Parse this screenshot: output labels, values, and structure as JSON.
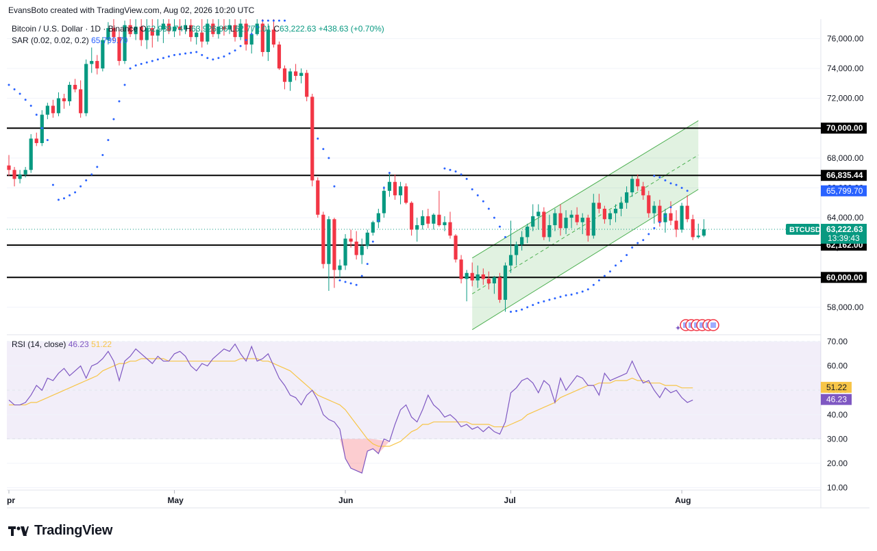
{
  "snapshot": "EvansBoto created with TradingView.com, Aug 02, 2026 10:20 UTC",
  "legend": {
    "symbol": "Bitcoin / U.S. Dollar · 1D · Binance",
    "o_label": "O",
    "o": "62,939.74",
    "h_label": "H",
    "h": "63,926.86",
    "l_label": "L",
    "l": "62,772.01",
    "c_label": "C",
    "c": "63,222.63",
    "change": "+438.63 (+0.70%)",
    "sar_label": "SAR (0.02, 0.02, 0.2)",
    "sar": "65,799.70",
    "rsi_label": "RSI (14, close)",
    "rsi": "46.23",
    "rsi_ma": "51.22"
  },
  "brand": {
    "name": "TradingView"
  },
  "colors": {
    "up": "#089981",
    "down": "#f23645",
    "sar": "#2962ff",
    "rsi": "#7e57c2",
    "rsi_ma": "#f7c548",
    "channel": "#4caf50"
  },
  "chart_data": [
    {
      "type": "candlestick",
      "symbol": "BTCUSD",
      "x_labels": [
        "Apr",
        "May",
        "Jun",
        "Jul",
        "Aug"
      ],
      "y_ticks": [
        58000,
        60000,
        62000,
        64000,
        66000,
        68000,
        70000,
        72000,
        74000,
        76000
      ],
      "y_range": [
        56300,
        77300
      ],
      "ohlc": [
        [
          67500,
          68200,
          66800,
          67200
        ],
        [
          67200,
          67400,
          66100,
          66600
        ],
        [
          66600,
          67200,
          66300,
          66900
        ],
        [
          66900,
          67400,
          66700,
          67200
        ],
        [
          67200,
          69600,
          67000,
          69300
        ],
        [
          69300,
          69700,
          68800,
          69000
        ],
        [
          69000,
          71200,
          68800,
          70900
        ],
        [
          70900,
          71700,
          70600,
          71500
        ],
        [
          71500,
          71900,
          70700,
          71000
        ],
        [
          71000,
          72400,
          70800,
          72000
        ],
        [
          72000,
          72300,
          71300,
          71800
        ],
        [
          71800,
          73100,
          71500,
          72900
        ],
        [
          72900,
          73300,
          72400,
          72600
        ],
        [
          72600,
          73200,
          70700,
          71000
        ],
        [
          71000,
          74600,
          70800,
          74300
        ],
        [
          74300,
          75400,
          73700,
          74500
        ],
        [
          74500,
          74900,
          73600,
          74000
        ],
        [
          74000,
          76100,
          73800,
          75900
        ],
        [
          75900,
          77100,
          75600,
          76700
        ],
        [
          76700,
          77300,
          75800,
          76100
        ],
        [
          76100,
          76600,
          74200,
          74500
        ],
        [
          74500,
          77200,
          74300,
          76900
        ],
        [
          76900,
          77300,
          76100,
          76300
        ],
        [
          76300,
          77300,
          75900,
          76800
        ],
        [
          76800,
          77300,
          75500,
          75900
        ],
        [
          75900,
          77300,
          75300,
          76700
        ],
        [
          76700,
          77300,
          75400,
          76200
        ],
        [
          76200,
          77300,
          75800,
          76600
        ],
        [
          76600,
          77300,
          75700,
          77000
        ],
        [
          77000,
          77300,
          76300,
          76500
        ],
        [
          76500,
          77300,
          76100,
          76800
        ],
        [
          76800,
          77300,
          76200,
          76600
        ],
        [
          76600,
          77300,
          76300,
          76900
        ],
        [
          76900,
          77300,
          75800,
          76100
        ],
        [
          76100,
          76800,
          75600,
          76400
        ],
        [
          76400,
          77300,
          75400,
          75800
        ],
        [
          75800,
          77300,
          75600,
          77000
        ],
        [
          77000,
          77300,
          76100,
          76300
        ],
        [
          76300,
          77300,
          76000,
          76800
        ],
        [
          76800,
          77300,
          76200,
          76600
        ],
        [
          76600,
          77300,
          76300,
          76900
        ],
        [
          76900,
          77300,
          75800,
          76100
        ],
        [
          76100,
          77300,
          75900,
          77000
        ],
        [
          77000,
          77300,
          75200,
          75600
        ],
        [
          75600,
          76800,
          75000,
          76300
        ],
        [
          76300,
          77300,
          76200,
          77000
        ],
        [
          77000,
          77300,
          74800,
          75100
        ],
        [
          75100,
          77000,
          74500,
          76600
        ],
        [
          76600,
          77300,
          75400,
          75600
        ],
        [
          75600,
          75800,
          73900,
          74000
        ],
        [
          74000,
          74200,
          72600,
          73100
        ],
        [
          73100,
          74000,
          72500,
          73800
        ],
        [
          73800,
          74300,
          73200,
          73500
        ],
        [
          73500,
          74000,
          73000,
          73700
        ],
        [
          73700,
          73900,
          71800,
          72100
        ],
        [
          72100,
          72300,
          66100,
          66500
        ],
        [
          66500,
          66700,
          64000,
          64200
        ],
        [
          64200,
          64400,
          60600,
          60900
        ],
        [
          60900,
          64100,
          59100,
          63900
        ],
        [
          63900,
          64000,
          59300,
          60500
        ],
        [
          60500,
          61200,
          60000,
          60800
        ],
        [
          60800,
          62900,
          60500,
          62600
        ],
        [
          62600,
          63200,
          62000,
          62400
        ],
        [
          62400,
          63100,
          61200,
          61500
        ],
        [
          61500,
          62600,
          60900,
          62100
        ],
        [
          62100,
          63200,
          61900,
          63000
        ],
        [
          63000,
          63800,
          62800,
          63700
        ],
        [
          63700,
          64600,
          63300,
          64300
        ],
        [
          64300,
          66100,
          64000,
          65800
        ],
        [
          65800,
          67000,
          65400,
          66400
        ],
        [
          66400,
          66900,
          65200,
          65500
        ],
        [
          65500,
          66400,
          64900,
          66100
        ],
        [
          66100,
          66300,
          64900,
          65000
        ],
        [
          65000,
          65100,
          62800,
          63200
        ],
        [
          63200,
          64000,
          62400,
          63500
        ],
        [
          63500,
          64500,
          63200,
          64100
        ],
        [
          64100,
          64600,
          63300,
          63600
        ],
        [
          63600,
          64300,
          63200,
          64200
        ],
        [
          64200,
          65800,
          63400,
          63500
        ],
        [
          63500,
          64100,
          63100,
          63700
        ],
        [
          63700,
          64400,
          62600,
          62800
        ],
        [
          62800,
          62900,
          61000,
          61200
        ],
        [
          61200,
          61500,
          59600,
          59900
        ],
        [
          59900,
          60500,
          58400,
          60300
        ],
        [
          60300,
          61000,
          59400,
          59800
        ],
        [
          59800,
          60800,
          59300,
          60200
        ],
        [
          60200,
          60600,
          59500,
          59900
        ],
        [
          59900,
          60400,
          59200,
          59600
        ],
        [
          59600,
          60100,
          58900,
          60000
        ],
        [
          60000,
          60300,
          58300,
          58500
        ],
        [
          58500,
          61000,
          57700,
          60800
        ],
        [
          60800,
          63800,
          60300,
          61500
        ],
        [
          61500,
          62400,
          60800,
          62200
        ],
        [
          62200,
          63100,
          61800,
          62700
        ],
        [
          62700,
          63600,
          62300,
          63400
        ],
        [
          63400,
          64900,
          63100,
          64100
        ],
        [
          64100,
          64900,
          63200,
          64400
        ],
        [
          64400,
          64700,
          62500,
          62700
        ],
        [
          62700,
          64200,
          62400,
          63500
        ],
        [
          63500,
          64600,
          63100,
          64300
        ],
        [
          64300,
          64900,
          62800,
          63300
        ],
        [
          63300,
          64500,
          62900,
          64000
        ],
        [
          64000,
          64500,
          63300,
          64200
        ],
        [
          64200,
          64700,
          63500,
          63700
        ],
        [
          63700,
          64300,
          62900,
          64000
        ],
        [
          64000,
          64200,
          62400,
          62800
        ],
        [
          62800,
          65600,
          62600,
          65000
        ],
        [
          65000,
          65600,
          64300,
          64600
        ],
        [
          64600,
          64800,
          63600,
          63900
        ],
        [
          63900,
          64500,
          63500,
          64300
        ],
        [
          64300,
          64900,
          63700,
          64600
        ],
        [
          64600,
          65400,
          64100,
          65000
        ],
        [
          65000,
          66100,
          64600,
          65700
        ],
        [
          65700,
          66800,
          65400,
          66600
        ],
        [
          66600,
          66900,
          65800,
          66100
        ],
        [
          66100,
          66400,
          65200,
          65500
        ],
        [
          65500,
          65800,
          64000,
          64300
        ],
        [
          64300,
          65100,
          63600,
          64800
        ],
        [
          64800,
          65200,
          63400,
          63700
        ],
        [
          63700,
          64600,
          63000,
          64300
        ],
        [
          64300,
          65100,
          63500,
          63800
        ],
        [
          63800,
          64500,
          62700,
          63200
        ],
        [
          63200,
          65000,
          63000,
          64800
        ],
        [
          64800,
          65500,
          63700,
          63900
        ],
        [
          63900,
          64200,
          62500,
          62700
        ],
        [
          62700,
          63600,
          62600,
          62800
        ],
        [
          62800,
          63900,
          62700,
          63222
        ]
      ],
      "sar": [
        72900,
        72600,
        72300,
        71900,
        71500,
        70900,
        70000,
        69200,
        66200,
        65200,
        65300,
        65500,
        65700,
        66100,
        66500,
        66900,
        67400,
        68200,
        69200,
        70600,
        71800,
        72900,
        74000,
        74200,
        74300,
        74400,
        74500,
        74600,
        74700,
        74800,
        74900,
        74950,
        75000,
        75050,
        75100,
        74900,
        74700,
        74600,
        74700,
        74800,
        75000,
        75200,
        75500,
        75900,
        76300,
        76800,
        77200,
        77200,
        77200,
        77200,
        77200,
        null,
        null,
        null,
        null,
        null,
        null,
        null,
        null,
        null,
        null,
        null,
        null,
        null,
        null,
        null,
        null,
        null,
        null,
        null,
        null,
        null,
        null,
        null,
        null,
        null,
        null,
        null,
        null,
        null,
        null,
        null,
        null,
        null,
        null,
        null,
        null,
        null,
        null,
        null,
        null,
        null,
        null,
        null,
        null,
        null,
        null,
        null,
        null,
        null,
        null,
        null,
        null,
        null,
        null,
        null,
        null,
        null,
        null,
        null,
        null,
        null,
        null,
        null,
        null,
        null,
        null,
        null,
        null,
        null,
        null,
        null,
        null,
        null,
        null,
        null,
        null,
        null,
        null,
        null,
        null,
        null,
        null,
        null,
        null,
        null,
        null,
        null,
        null
      ],
      "horizontal_levels": [
        70000,
        66835.44,
        62162,
        60000
      ],
      "price_labels": {
        "last": "63,222.63",
        "countdown": "13:39:43",
        "sar": "65,799.70",
        "levels": [
          "70,000.00",
          "66,835.44",
          "62,162.00",
          "60,000.00"
        ],
        "symbol_tag": "BTCUSD"
      },
      "channel": {
        "lower_start": [
          84,
          56500
        ],
        "lower_end": [
          125,
          65900
        ],
        "upper_start": [
          84,
          61300
        ],
        "upper_end": [
          125,
          70500
        ]
      }
    },
    {
      "type": "line",
      "name": "RSI (14, close)",
      "y_ticks": [
        10,
        20,
        30,
        40,
        50,
        60,
        70
      ],
      "y_range": [
        9,
        72
      ],
      "band": [
        30,
        70
      ],
      "rsi": [
        46,
        44,
        44,
        45,
        48,
        52,
        50,
        55,
        54,
        57,
        59,
        56,
        58,
        60,
        55,
        60,
        61,
        63,
        66,
        62,
        54,
        62,
        64,
        67,
        65,
        63,
        61,
        64,
        62,
        62,
        65,
        66,
        64,
        60,
        58,
        61,
        60,
        63,
        65,
        67,
        66,
        69,
        65,
        62,
        68,
        62,
        63,
        65,
        60,
        55,
        52,
        48,
        47,
        44,
        48,
        50,
        46,
        40,
        38,
        37,
        34,
        22,
        18,
        17,
        16,
        25,
        26,
        24,
        30,
        29,
        36,
        42,
        44,
        39,
        37,
        42,
        48,
        44,
        42,
        39,
        40,
        38,
        35,
        36,
        34,
        35,
        33,
        35,
        33,
        32,
        37,
        49,
        51,
        54,
        55,
        53,
        49,
        54,
        52,
        45,
        55,
        50,
        53,
        56,
        55,
        52,
        52,
        48,
        57,
        54,
        55,
        56,
        57,
        62,
        57,
        53,
        54,
        50,
        47,
        51,
        49,
        50,
        47,
        45,
        46
      ],
      "rsi_ma": [
        44,
        44,
        44,
        44,
        45,
        45,
        46,
        47,
        48,
        49,
        50,
        51,
        52,
        53,
        54,
        55,
        56,
        58,
        59,
        60,
        61,
        61,
        62,
        62,
        63,
        63,
        63,
        63,
        63,
        62,
        62,
        62,
        62,
        62,
        62,
        62,
        62,
        62,
        62,
        62,
        62,
        62,
        63,
        63,
        63,
        63,
        62,
        62,
        61,
        60,
        59,
        58,
        56,
        54,
        52,
        50,
        48,
        47,
        46,
        45,
        44,
        42,
        39,
        36,
        33,
        30,
        28,
        27,
        27,
        27,
        28,
        29,
        31,
        33,
        34,
        36,
        36,
        37,
        37,
        37,
        37,
        37,
        37,
        37,
        36,
        36,
        36,
        36,
        35,
        35,
        35,
        36,
        37,
        38,
        40,
        41,
        42,
        43,
        44,
        45,
        47,
        48,
        49,
        50,
        51,
        52,
        52,
        53,
        53,
        53,
        54,
        54,
        54,
        55,
        54,
        54,
        53,
        53,
        53,
        52,
        52,
        52,
        51,
        51,
        51
      ],
      "last": {
        "rsi": "46.23",
        "ma": "51.22"
      }
    }
  ]
}
